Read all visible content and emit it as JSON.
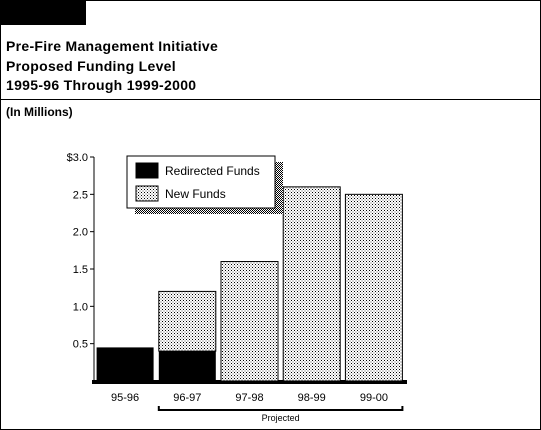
{
  "header": {
    "title_lines": [
      "Pre-Fire Management Initiative",
      "Proposed Funding Level",
      "1995-96 Through 1999-2000"
    ],
    "units": "(In Millions)"
  },
  "colors": {
    "redirected": "#000000",
    "new_funds_pattern": "dotted-gray",
    "shadow": "#b0b0b0"
  },
  "chart_data": {
    "type": "bar",
    "stacked": true,
    "categories": [
      "95-96",
      "96-97",
      "97-98",
      "98-99",
      "99-00"
    ],
    "series": [
      {
        "name": "Redirected Funds",
        "values": [
          0.45,
          0.4,
          0,
          0,
          0
        ]
      },
      {
        "name": "New Funds",
        "values": [
          0,
          0.8,
          1.6,
          2.6,
          2.5
        ]
      }
    ],
    "yticks": [
      "0.5",
      "1.0",
      "1.5",
      "2.0",
      "2.5",
      "$3.0"
    ],
    "ytick_values": [
      0.5,
      1.0,
      1.5,
      2.0,
      2.5,
      3.0
    ],
    "ylim": [
      0,
      3.0
    ],
    "legend": {
      "placement": "top-left",
      "entries": [
        "Redirected Funds",
        "New Funds"
      ]
    },
    "annotation": {
      "text": "Projected",
      "span": [
        "96-97",
        "99-00"
      ]
    },
    "grid": false
  }
}
